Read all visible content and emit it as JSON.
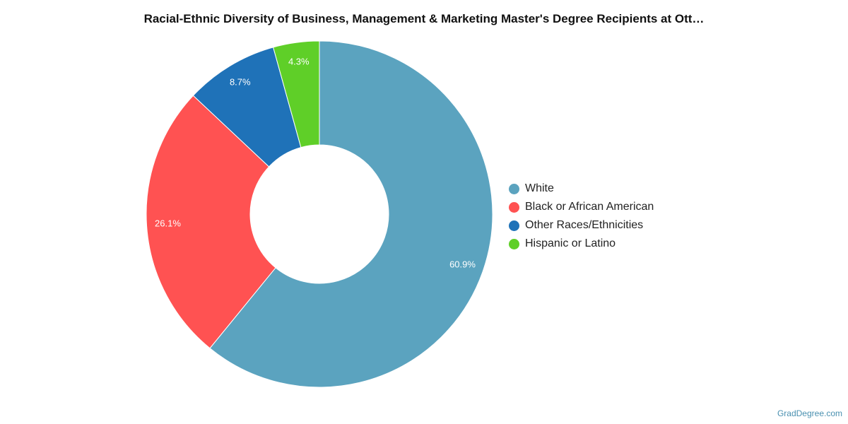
{
  "chart_data": {
    "type": "pie",
    "title": "Racial-Ethnic Diversity of Business, Management & Marketing Master's Degree Recipients at Ott…",
    "donut": true,
    "legend_position": "right",
    "slices": [
      {
        "label": "White",
        "value": 60.9,
        "value_label": "60.9%",
        "color": "#5ba3bf"
      },
      {
        "label": "Black or African American",
        "value": 26.1,
        "value_label": "26.1%",
        "color": "#ff5252"
      },
      {
        "label": "Other Races/Ethnicities",
        "value": 8.7,
        "value_label": "8.7%",
        "color": "#1f72b8"
      },
      {
        "label": "Hispanic or Latino",
        "value": 4.3,
        "value_label": "4.3%",
        "color": "#5fcf28"
      }
    ]
  },
  "credit": "GradDegree.com"
}
